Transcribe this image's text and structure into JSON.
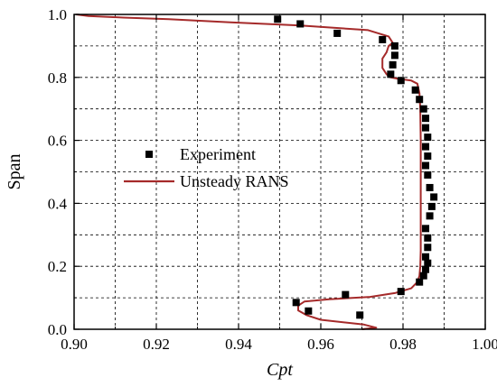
{
  "chart_data": {
    "type": "scatter",
    "title": "",
    "xlabel": "Cpt",
    "ylabel": "Span",
    "xlim": [
      0.9,
      1.0
    ],
    "ylim": [
      0.0,
      1.0
    ],
    "xticks": [
      "0.90",
      "0.92",
      "0.94",
      "0.96",
      "0.98",
      "1.00"
    ],
    "yticks": [
      "0.0",
      "0.2",
      "0.4",
      "0.6",
      "0.8",
      "1.0"
    ],
    "grid": true,
    "legend_position": "center-left",
    "series": [
      {
        "name": "Experiment",
        "kind": "scatter",
        "color": "#000000",
        "marker": "square",
        "points": [
          [
            0.9695,
            0.045
          ],
          [
            0.954,
            0.085
          ],
          [
            0.957,
            0.058
          ],
          [
            0.966,
            0.11
          ],
          [
            0.9795,
            0.12
          ],
          [
            0.984,
            0.15
          ],
          [
            0.985,
            0.17
          ],
          [
            0.9855,
            0.19
          ],
          [
            0.986,
            0.21
          ],
          [
            0.9855,
            0.23
          ],
          [
            0.986,
            0.26
          ],
          [
            0.986,
            0.29
          ],
          [
            0.9855,
            0.32
          ],
          [
            0.9865,
            0.36
          ],
          [
            0.987,
            0.39
          ],
          [
            0.9875,
            0.42
          ],
          [
            0.9865,
            0.45
          ],
          [
            0.986,
            0.49
          ],
          [
            0.9855,
            0.52
          ],
          [
            0.986,
            0.55
          ],
          [
            0.9855,
            0.58
          ],
          [
            0.986,
            0.61
          ],
          [
            0.9855,
            0.64
          ],
          [
            0.9855,
            0.67
          ],
          [
            0.985,
            0.7
          ],
          [
            0.984,
            0.73
          ],
          [
            0.983,
            0.76
          ],
          [
            0.9795,
            0.79
          ],
          [
            0.977,
            0.81
          ],
          [
            0.9775,
            0.84
          ],
          [
            0.978,
            0.87
          ],
          [
            0.978,
            0.9
          ],
          [
            0.975,
            0.92
          ],
          [
            0.964,
            0.94
          ],
          [
            0.955,
            0.97
          ],
          [
            0.9495,
            0.985
          ]
        ]
      },
      {
        "name": "Unsteady RANS",
        "kind": "line",
        "color": "#a52a2a",
        "points": [
          [
            0.97,
            0.0
          ],
          [
            0.9735,
            0.005
          ],
          [
            0.9705,
            0.015
          ],
          [
            0.96,
            0.03
          ],
          [
            0.9565,
            0.045
          ],
          [
            0.9545,
            0.06
          ],
          [
            0.9545,
            0.075
          ],
          [
            0.956,
            0.088
          ],
          [
            0.962,
            0.095
          ],
          [
            0.972,
            0.103
          ],
          [
            0.978,
            0.115
          ],
          [
            0.982,
            0.13
          ],
          [
            0.9835,
            0.15
          ],
          [
            0.984,
            0.17
          ],
          [
            0.9842,
            0.2
          ],
          [
            0.9843,
            0.25
          ],
          [
            0.9843,
            0.3
          ],
          [
            0.9843,
            0.4
          ],
          [
            0.9843,
            0.5
          ],
          [
            0.9843,
            0.6
          ],
          [
            0.9842,
            0.7
          ],
          [
            0.984,
            0.75
          ],
          [
            0.9835,
            0.78
          ],
          [
            0.982,
            0.79
          ],
          [
            0.979,
            0.795
          ],
          [
            0.977,
            0.8
          ],
          [
            0.976,
            0.81
          ],
          [
            0.975,
            0.83
          ],
          [
            0.975,
            0.86
          ],
          [
            0.976,
            0.88
          ],
          [
            0.9765,
            0.9
          ],
          [
            0.9775,
            0.91
          ],
          [
            0.9765,
            0.93
          ],
          [
            0.9715,
            0.95
          ],
          [
            0.955,
            0.965
          ],
          [
            0.938,
            0.975
          ],
          [
            0.923,
            0.985
          ],
          [
            0.912,
            0.99
          ],
          [
            0.9035,
            0.995
          ],
          [
            0.9005,
            1.0
          ]
        ]
      }
    ]
  }
}
